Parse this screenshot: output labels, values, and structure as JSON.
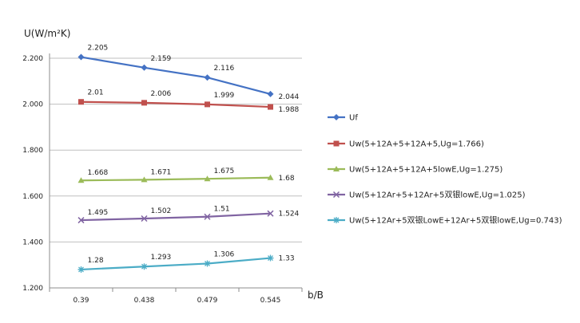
{
  "chart_data": {
    "type": "line",
    "ylabel": "U(W/m²K)",
    "xlabel": "b/B",
    "categories": [
      "0.39",
      "0.438",
      "0.479",
      "0.545"
    ],
    "ylim": [
      1.2,
      2.2
    ],
    "yticks": [
      "1.200",
      "1.400",
      "1.600",
      "1.800",
      "2.000",
      "2.200"
    ],
    "grid": "horizontal",
    "legend_position": "right",
    "series": [
      {
        "name": "Uf",
        "values": [
          2.205,
          2.159,
          2.116,
          2.044
        ],
        "labels": [
          "2.205",
          "2.159",
          "2.116",
          "2.044"
        ],
        "color": "#4472C4",
        "marker": "diamond"
      },
      {
        "name": "Uw(5+12A+5+12A+5,Ug=1.766)",
        "values": [
          2.01,
          2.006,
          1.999,
          1.988
        ],
        "labels": [
          "2.01",
          "2.006",
          "1.999",
          "1.988"
        ],
        "color": "#C0504D",
        "marker": "square"
      },
      {
        "name": "Uw(5+12A+5+12A+5lowE,Ug=1.275)",
        "values": [
          1.668,
          1.671,
          1.675,
          1.68
        ],
        "labels": [
          "1.668",
          "1.671",
          "1.675",
          "1.68"
        ],
        "color": "#9BBB59",
        "marker": "triangle"
      },
      {
        "name": "Uw(5+12Ar+5+12Ar+5双银lowE,Ug=1.025)",
        "values": [
          1.495,
          1.502,
          1.51,
          1.524
        ],
        "labels": [
          "1.495",
          "1.502",
          "1.51",
          "1.524"
        ],
        "color": "#8064A2",
        "marker": "x"
      },
      {
        "name": "Uw(5+12Ar+5双银LowE+12Ar+5双银lowE,Ug=0.743)",
        "values": [
          1.28,
          1.293,
          1.306,
          1.33
        ],
        "labels": [
          "1.28",
          "1.293",
          "1.306",
          "1.33"
        ],
        "color": "#4BACC6",
        "marker": "star"
      }
    ]
  }
}
